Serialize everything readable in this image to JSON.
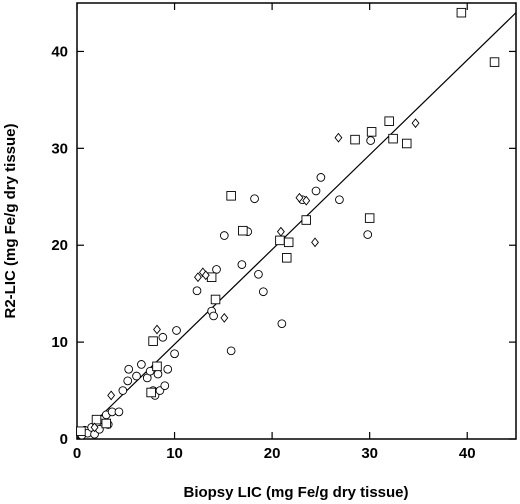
{
  "chart_data": {
    "type": "scatter",
    "title": "",
    "xlabel": "Biopsy LIC (mg Fe/g dry tissue)",
    "ylabel": "R2-LIC (mg Fe/g dry tissue)",
    "xlim": [
      0,
      45
    ],
    "ylim": [
      0,
      45
    ],
    "xticks": [
      0,
      10,
      20,
      30,
      40
    ],
    "yticks": [
      0,
      10,
      20,
      30,
      40
    ],
    "grid": false,
    "legend": "none",
    "fit_line": {
      "x": [
        0,
        45
      ],
      "y": [
        0,
        44
      ]
    },
    "series": [
      {
        "marker": "circle",
        "points": [
          [
            0.5,
            0.4
          ],
          [
            0.8,
            0.9
          ],
          [
            1.1,
            0.6
          ],
          [
            1.5,
            1.2
          ],
          [
            1.8,
            0.5
          ],
          [
            2.0,
            1.6
          ],
          [
            2.3,
            1.0
          ],
          [
            2.6,
            2.0
          ],
          [
            3.0,
            2.5
          ],
          [
            3.2,
            1.5
          ],
          [
            3.6,
            2.8
          ],
          [
            4.3,
            2.8
          ],
          [
            4.7,
            5.0
          ],
          [
            5.2,
            6.0
          ],
          [
            5.3,
            7.2
          ],
          [
            6.1,
            6.5
          ],
          [
            6.6,
            7.7
          ],
          [
            7.2,
            6.3
          ],
          [
            7.5,
            7.0
          ],
          [
            7.8,
            5.0
          ],
          [
            8.0,
            4.5
          ],
          [
            8.3,
            6.7
          ],
          [
            8.5,
            5.0
          ],
          [
            8.8,
            10.5
          ],
          [
            9.0,
            5.5
          ],
          [
            9.3,
            7.2
          ],
          [
            10.0,
            8.8
          ],
          [
            10.2,
            11.2
          ],
          [
            12.3,
            15.3
          ],
          [
            13.8,
            13.2
          ],
          [
            14.0,
            12.7
          ],
          [
            14.3,
            17.5
          ],
          [
            15.1,
            21.0
          ],
          [
            15.8,
            9.1
          ],
          [
            16.9,
            18.0
          ],
          [
            17.5,
            21.4
          ],
          [
            18.2,
            24.8
          ],
          [
            18.6,
            17.0
          ],
          [
            19.1,
            15.2
          ],
          [
            21.0,
            11.9
          ],
          [
            23.1,
            24.7
          ],
          [
            24.5,
            25.6
          ],
          [
            25.0,
            27.0
          ],
          [
            26.9,
            24.7
          ],
          [
            29.8,
            21.1
          ],
          [
            30.1,
            30.8
          ]
        ]
      },
      {
        "marker": "square",
        "points": [
          [
            0.4,
            0.8
          ],
          [
            2.0,
            2.0
          ],
          [
            3.0,
            1.6
          ],
          [
            7.6,
            4.8
          ],
          [
            7.8,
            10.1
          ],
          [
            8.2,
            7.5
          ],
          [
            13.8,
            16.7
          ],
          [
            14.2,
            14.4
          ],
          [
            15.8,
            25.1
          ],
          [
            17.0,
            21.5
          ],
          [
            20.8,
            20.5
          ],
          [
            21.5,
            18.7
          ],
          [
            21.7,
            20.3
          ],
          [
            23.5,
            22.6
          ],
          [
            28.5,
            30.9
          ],
          [
            30.0,
            22.8
          ],
          [
            30.2,
            31.7
          ],
          [
            32.0,
            32.8
          ],
          [
            32.4,
            31.0
          ],
          [
            33.8,
            30.5
          ],
          [
            39.4,
            44.0
          ],
          [
            42.8,
            38.9
          ]
        ]
      },
      {
        "marker": "diamond",
        "points": [
          [
            1.8,
            1.2
          ],
          [
            3.5,
            4.5
          ],
          [
            8.2,
            11.3
          ],
          [
            12.4,
            16.7
          ],
          [
            12.9,
            17.2
          ],
          [
            13.2,
            16.9
          ],
          [
            15.1,
            12.5
          ],
          [
            20.9,
            21.4
          ],
          [
            22.8,
            24.9
          ],
          [
            23.5,
            24.6
          ],
          [
            24.4,
            20.3
          ],
          [
            26.8,
            31.1
          ],
          [
            34.7,
            32.6
          ]
        ]
      }
    ]
  }
}
